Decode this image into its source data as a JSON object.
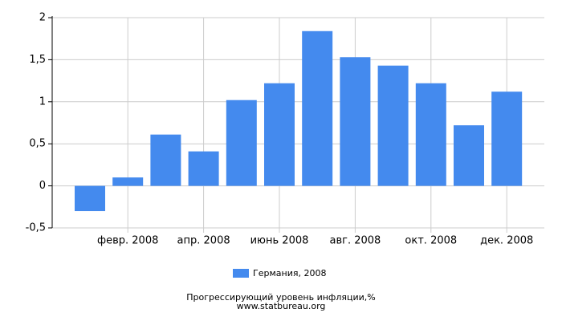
{
  "chart_data": {
    "type": "bar",
    "title": "Прогрессирующий уровень инфляции,%",
    "source": "www.statbureau.org",
    "categories": [
      null,
      "февр. 2008",
      null,
      "апр. 2008",
      null,
      "июнь 2008",
      null,
      "авг. 2008",
      null,
      "окт. 2008",
      null,
      "дек. 2008"
    ],
    "series": [
      {
        "name": "Германия, 2008",
        "color": "#448aee",
        "values": [
          -0.3,
          0.1,
          0.61,
          0.41,
          1.02,
          1.22,
          1.84,
          1.53,
          1.43,
          1.22,
          0.72,
          1.12
        ]
      }
    ],
    "ylim": [
      -0.5,
      2
    ],
    "yticks": [
      {
        "value": -0.5,
        "label": "-0,5"
      },
      0,
      {
        "value": 0.5,
        "label": "0,5"
      },
      1,
      {
        "value": 1.5,
        "label": "1,5"
      },
      2
    ],
    "grid": true
  }
}
